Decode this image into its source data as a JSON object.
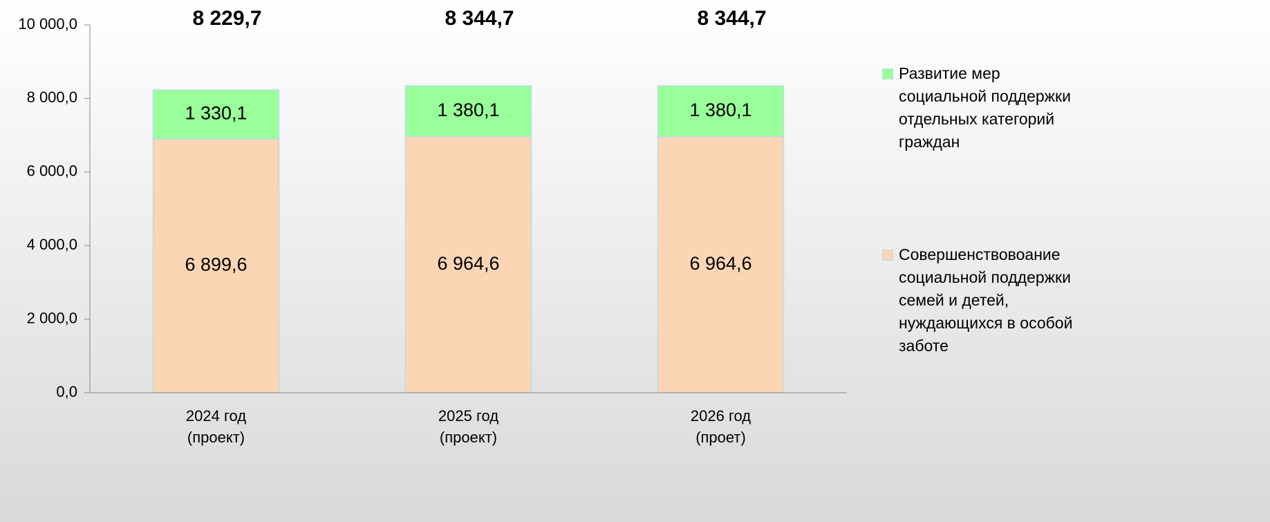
{
  "chart_data": {
    "type": "stacked_bar",
    "categories": [
      [
        "2024 год",
        "(проект)"
      ],
      [
        "2025 год",
        "(проект)"
      ],
      [
        "2026 год",
        "(проет)"
      ]
    ],
    "series": [
      {
        "name": "Совершенствовоание социальной поддержки семей и детей, нуждающихся в особой заботе",
        "color": "#fcd5b4",
        "values": [
          6899.6,
          6964.6,
          6964.6
        ],
        "value_labels": [
          "6 899,6",
          "6 964,6",
          "6 964,6"
        ]
      },
      {
        "name": "Развитие мер социальной поддержки отдельных категорий граждан",
        "color": "#99ff99",
        "values": [
          1330.1,
          1380.1,
          1380.1
        ],
        "value_labels": [
          "1 330,1",
          "1 380,1",
          "1 380,1"
        ]
      }
    ],
    "totals": [
      8229.7,
      8344.7,
      8344.7
    ],
    "total_labels": [
      "8 229,7",
      "8 344,7",
      "8 344,7"
    ],
    "ylim": [
      0,
      10000
    ],
    "yticks": [
      {
        "value": 0,
        "label": "0,0"
      },
      {
        "value": 2000,
        "label": "2 000,0"
      },
      {
        "value": 4000,
        "label": "4 000,0"
      },
      {
        "value": 6000,
        "label": "6 000,0"
      },
      {
        "value": 8000,
        "label": "8 000,0"
      },
      {
        "value": 10000,
        "label": "10 000,0"
      }
    ],
    "legend": "right"
  }
}
